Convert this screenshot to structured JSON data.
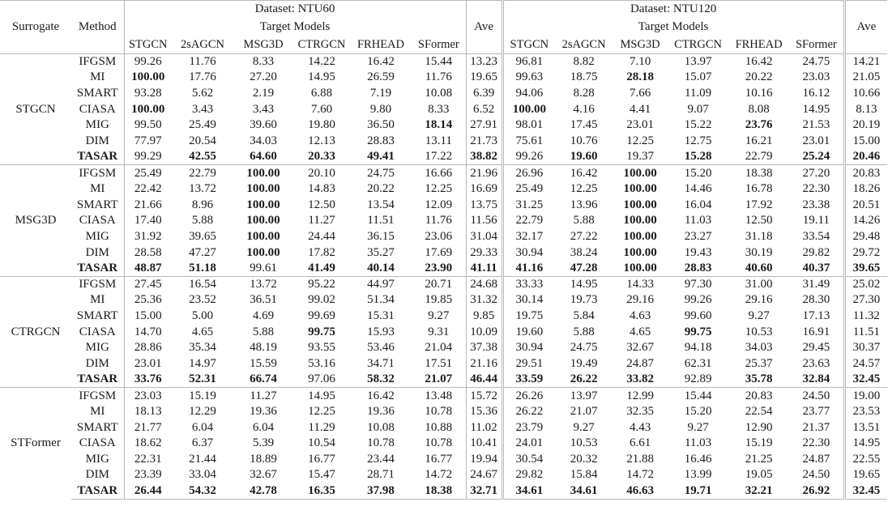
{
  "header": {
    "surrogate": "Surrogate",
    "method": "Method",
    "ave": "Ave",
    "target_models": "Target Models",
    "datasets": [
      "Dataset: NTU60",
      "Dataset: NTU120"
    ],
    "models": [
      "STGCN",
      "2sAGCN",
      "MSG3D",
      "CTRGCN",
      "FRHEAD",
      "SFormer"
    ]
  },
  "blocks": [
    {
      "surrogate": "STGCN",
      "rows": [
        {
          "method": "IFGSM",
          "values": [
            "99.26",
            "11.76",
            "8.33",
            "14.22",
            "16.42",
            "15.44",
            "13.23",
            "96.81",
            "8.82",
            "7.10",
            "13.97",
            "16.42",
            "24.75",
            "14.21"
          ],
          "bold": []
        },
        {
          "method": "MI",
          "values": [
            "100.00",
            "17.76",
            "27.20",
            "14.95",
            "26.59",
            "11.76",
            "19.65",
            "99.63",
            "18.75",
            "28.18",
            "15.07",
            "20.22",
            "23.03",
            "21.05"
          ],
          "bold": [
            0,
            9
          ]
        },
        {
          "method": "SMART",
          "values": [
            "93.28",
            "5.62",
            "2.19",
            "6.88",
            "7.19",
            "10.08",
            "6.39",
            "94.06",
            "8.28",
            "7.66",
            "11.09",
            "10.16",
            "16.12",
            "10.66"
          ],
          "bold": []
        },
        {
          "method": "CIASA",
          "values": [
            "100.00",
            "3.43",
            "3.43",
            "7.60",
            "9.80",
            "8.33",
            "6.52",
            "100.00",
            "4.16",
            "4.41",
            "9.07",
            "8.08",
            "14.95",
            "8.13"
          ],
          "bold": [
            0,
            7
          ]
        },
        {
          "method": "MIG",
          "values": [
            "99.50",
            "25.49",
            "39.60",
            "19.80",
            "36.50",
            "18.14",
            "27.91",
            "98.01",
            "17.45",
            "23.01",
            "15.22",
            "23.76",
            "21.53",
            "20.19"
          ],
          "bold": [
            5,
            11
          ]
        },
        {
          "method": "DIM",
          "values": [
            "77.97",
            "20.54",
            "34.03",
            "12.13",
            "28.83",
            "13.11",
            "21.73",
            "75.61",
            "10.76",
            "12.25",
            "12.75",
            "16.21",
            "23.01",
            "15.00"
          ],
          "bold": []
        },
        {
          "method": "TASAR",
          "values": [
            "99.29",
            "42.55",
            "64.60",
            "20.33",
            "49.41",
            "17.22",
            "38.82",
            "99.26",
            "19.60",
            "19.37",
            "15.28",
            "22.79",
            "25.24",
            "20.46"
          ],
          "bold": [
            1,
            2,
            3,
            4,
            6,
            8,
            10,
            12,
            13
          ]
        }
      ]
    },
    {
      "surrogate": "MSG3D",
      "rows": [
        {
          "method": "IFGSM",
          "values": [
            "25.49",
            "22.79",
            "100.00",
            "20.10",
            "24.75",
            "16.66",
            "21.96",
            "26.96",
            "16.42",
            "100.00",
            "15.20",
            "18.38",
            "27.20",
            "20.83"
          ],
          "bold": [
            2,
            9
          ]
        },
        {
          "method": "MI",
          "values": [
            "22.42",
            "13.72",
            "100.00",
            "14.83",
            "20.22",
            "12.25",
            "16.69",
            "25.49",
            "12.25",
            "100.00",
            "14.46",
            "16.78",
            "22.30",
            "18.26"
          ],
          "bold": [
            2,
            9
          ]
        },
        {
          "method": "SMART",
          "values": [
            "21.66",
            "8.96",
            "100.00",
            "12.50",
            "13.54",
            "12.09",
            "13.75",
            "31.25",
            "13.96",
            "100.00",
            "16.04",
            "17.92",
            "23.38",
            "20.51"
          ],
          "bold": [
            2,
            9
          ]
        },
        {
          "method": "CIASA",
          "values": [
            "17.40",
            "5.88",
            "100.00",
            "11.27",
            "11.51",
            "11.76",
            "11.56",
            "22.79",
            "5.88",
            "100.00",
            "11.03",
            "12.50",
            "19.11",
            "14.26"
          ],
          "bold": [
            2,
            9
          ]
        },
        {
          "method": "MIG",
          "values": [
            "31.92",
            "39.65",
            "100.00",
            "24.44",
            "36.15",
            "23.06",
            "31.04",
            "32.17",
            "27.22",
            "100.00",
            "23.27",
            "31.18",
            "33.54",
            "29.48"
          ],
          "bold": [
            2,
            9
          ]
        },
        {
          "method": "DIM",
          "values": [
            "28.58",
            "47.27",
            "100.00",
            "17.82",
            "35.27",
            "17.69",
            "29.33",
            "30.94",
            "38.24",
            "100.00",
            "19.43",
            "30.19",
            "29.82",
            "29.72"
          ],
          "bold": [
            2,
            9
          ]
        },
        {
          "method": "TASAR",
          "values": [
            "48.87",
            "51.18",
            "99.61",
            "41.49",
            "40.14",
            "23.90",
            "41.11",
            "41.16",
            "47.28",
            "100.00",
            "28.83",
            "40.60",
            "40.37",
            "39.65"
          ],
          "bold": [
            0,
            1,
            3,
            4,
            5,
            6,
            7,
            8,
            9,
            10,
            11,
            12,
            13
          ]
        }
      ]
    },
    {
      "surrogate": "CTRGCN",
      "rows": [
        {
          "method": "IFGSM",
          "values": [
            "27.45",
            "16.54",
            "13.72",
            "95.22",
            "44.97",
            "20.71",
            "24.68",
            "33.33",
            "14.95",
            "14.33",
            "97.30",
            "31.00",
            "31.49",
            "25.02"
          ],
          "bold": []
        },
        {
          "method": "MI",
          "values": [
            "25.36",
            "23.52",
            "36.51",
            "99.02",
            "51.34",
            "19.85",
            "31.32",
            "30.14",
            "19.73",
            "29.16",
            "99.26",
            "29.16",
            "28.30",
            "27.30"
          ],
          "bold": []
        },
        {
          "method": "SMART",
          "values": [
            "15.00",
            "5.00",
            "4.69",
            "99.69",
            "15.31",
            "9.27",
            "9.85",
            "19.75",
            "5.84",
            "4.63",
            "99.60",
            "9.27",
            "17.13",
            "11.32"
          ],
          "bold": []
        },
        {
          "method": "CIASA",
          "values": [
            "14.70",
            "4.65",
            "5.88",
            "99.75",
            "15.93",
            "9.31",
            "10.09",
            "19.60",
            "5.88",
            "4.65",
            "99.75",
            "10.53",
            "16.91",
            "11.51"
          ],
          "bold": [
            3,
            10
          ]
        },
        {
          "method": "MIG",
          "values": [
            "28.86",
            "35.34",
            "48.19",
            "93.55",
            "53.46",
            "21.04",
            "37.38",
            "30.94",
            "24.75",
            "32.67",
            "94.18",
            "34.03",
            "29.45",
            "30.37"
          ],
          "bold": []
        },
        {
          "method": "DIM",
          "values": [
            "23.01",
            "14.97",
            "15.59",
            "53.16",
            "34.71",
            "17.51",
            "21.16",
            "29.51",
            "19.49",
            "24.87",
            "62.31",
            "25.37",
            "23.63",
            "24.57"
          ],
          "bold": []
        },
        {
          "method": "TASAR",
          "values": [
            "33.76",
            "52.31",
            "66.74",
            "97.06",
            "58.32",
            "21.07",
            "46.44",
            "33.59",
            "26.22",
            "33.82",
            "92.89",
            "35.78",
            "32.84",
            "32.45"
          ],
          "bold": [
            0,
            1,
            2,
            4,
            5,
            6,
            7,
            8,
            9,
            11,
            12,
            13
          ]
        }
      ]
    },
    {
      "surrogate": "STFormer",
      "rows": [
        {
          "method": "IFGSM",
          "values": [
            "23.03",
            "15.19",
            "11.27",
            "14.95",
            "16.42",
            "13.48",
            "15.72",
            "26.26",
            "13.97",
            "12.99",
            "15.44",
            "20.83",
            "24.50",
            "19.00"
          ],
          "bold": []
        },
        {
          "method": "MI",
          "values": [
            "18.13",
            "12.29",
            "19.36",
            "12.25",
            "19.36",
            "10.78",
            "15.36",
            "26.22",
            "21.07",
            "32.35",
            "15.20",
            "22.54",
            "23.77",
            "23.53"
          ],
          "bold": []
        },
        {
          "method": "SMART",
          "values": [
            "21.77",
            "6.04",
            "6.04",
            "11.29",
            "10.08",
            "10.88",
            "11.02",
            "23.79",
            "9.27",
            "4.43",
            "9.27",
            "12.90",
            "21.37",
            "13.51"
          ],
          "bold": []
        },
        {
          "method": "CIASA",
          "values": [
            "18.62",
            "6.37",
            "5.39",
            "10.54",
            "10.78",
            "10.78",
            "10.41",
            "24.01",
            "10.53",
            "6.61",
            "11.03",
            "15.19",
            "22.30",
            "14.95"
          ],
          "bold": []
        },
        {
          "method": "MIG",
          "values": [
            "22.31",
            "21.44",
            "18.89",
            "16.77",
            "23.44",
            "16.77",
            "19.94",
            "30.54",
            "20.32",
            "21.88",
            "16.46",
            "21.25",
            "24.87",
            "22.55"
          ],
          "bold": []
        },
        {
          "method": "DIM",
          "values": [
            "23.39",
            "33.04",
            "32.67",
            "15.47",
            "28.71",
            "14.72",
            "24.67",
            "29.82",
            "15.84",
            "14.72",
            "13.99",
            "19.05",
            "24.50",
            "19.65"
          ],
          "bold": []
        },
        {
          "method": "TASAR",
          "values": [
            "26.44",
            "54.32",
            "42.78",
            "16.35",
            "37.98",
            "18.38",
            "32.71",
            "34.61",
            "34.61",
            "46.63",
            "19.71",
            "32.21",
            "26.92",
            "32.45"
          ],
          "bold": [
            0,
            1,
            2,
            3,
            4,
            5,
            6,
            7,
            8,
            9,
            10,
            11,
            12,
            13
          ]
        }
      ]
    }
  ]
}
